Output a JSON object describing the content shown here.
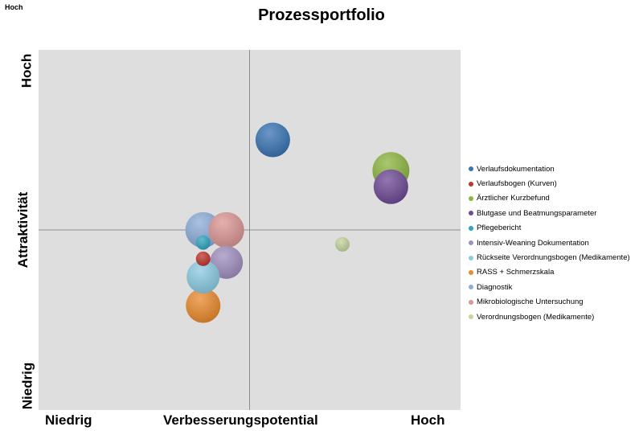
{
  "corner_label": "Hoch",
  "chart_data": {
    "type": "bubble",
    "title": "Prozessportfolio",
    "xlabel": "Verbesserungspotential",
    "ylabel": "Attraktivität",
    "x_low_label": "Niedrig",
    "x_high_label": "Hoch",
    "y_low_label": "Niedrig",
    "y_high_label": "Hoch",
    "xlim": [
      0,
      10
    ],
    "ylim": [
      0,
      10
    ],
    "midline_x": 5,
    "midline_y": 5,
    "grid": false,
    "legend_position": "right",
    "series": [
      {
        "name": "Verlaufsdokumentation",
        "color": "#3a74b4",
        "x": 5.55,
        "y": 7.5,
        "size": 3
      },
      {
        "name": "Verlaufsbogen (Kurven)",
        "color": "#c0352d",
        "x": 3.9,
        "y": 4.2,
        "size": 1
      },
      {
        "name": "Ärztlicher Kurzbefund",
        "color": "#8db640",
        "x": 8.35,
        "y": 6.65,
        "size": 3.5
      },
      {
        "name": "Blutgase und Beatmungsparameter",
        "color": "#6f4a96",
        "x": 8.35,
        "y": 6.2,
        "size": 3
      },
      {
        "name": "Pflegebericht",
        "color": "#2fa5c0",
        "x": 3.9,
        "y": 4.65,
        "size": 1
      },
      {
        "name": "Intensiv-Weaning Dokumentation",
        "color": "#a08fc0",
        "x": 4.45,
        "y": 4.1,
        "size": 2.7
      },
      {
        "name": "Rückseite Verordnungsbogen (Medikamente)",
        "color": "#8ccbe3",
        "x": 3.9,
        "y": 3.7,
        "size": 2.7
      },
      {
        "name": "RASS + Schmerzskala",
        "color": "#ea8b2e",
        "x": 3.9,
        "y": 2.9,
        "size": 3
      },
      {
        "name": "Diagnostik",
        "color": "#8dadd9",
        "x": 3.9,
        "y": 5.0,
        "size": 3.2
      },
      {
        "name": "Mikrobiologische Untersuchung",
        "color": "#db9694",
        "x": 4.45,
        "y": 5.0,
        "size": 3.2
      },
      {
        "name": "Verordnungsbogen (Medikamente)",
        "color": "#c3d69b",
        "x": 7.2,
        "y": 4.6,
        "size": 1
      }
    ]
  }
}
